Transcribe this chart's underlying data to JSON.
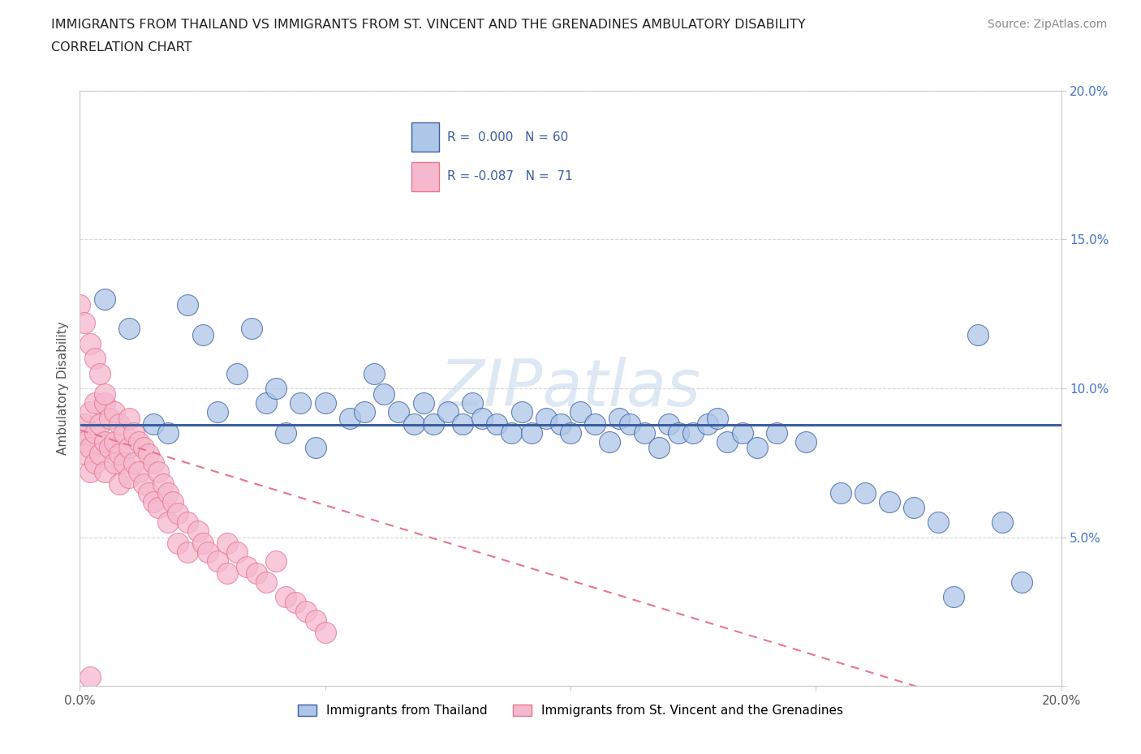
{
  "title_line1": "IMMIGRANTS FROM THAILAND VS IMMIGRANTS FROM ST. VINCENT AND THE GRENADINES AMBULATORY DISABILITY",
  "title_line2": "CORRELATION CHART",
  "source": "Source: ZipAtlas.com",
  "ylabel": "Ambulatory Disability",
  "xlim": [
    0.0,
    0.2
  ],
  "ylim": [
    0.0,
    0.2
  ],
  "x_ticks": [
    0.0,
    0.05,
    0.1,
    0.15,
    0.2
  ],
  "x_tick_labels": [
    "0.0%",
    "",
    "",
    "",
    "20.0%"
  ],
  "y_ticks": [
    0.0,
    0.05,
    0.1,
    0.15,
    0.2
  ],
  "y_tick_labels_left": [
    "",
    "",
    "",
    "",
    ""
  ],
  "y_tick_labels_right": [
    "",
    "5.0%",
    "10.0%",
    "15.0%",
    "20.0%"
  ],
  "color_thailand": "#aec6e8",
  "color_stvincent": "#f5b8ce",
  "color_trend_thailand": "#3a5fa0",
  "color_trend_stvincent": "#e8758a",
  "watermark": "ZIPatlas",
  "legend_entries": [
    "Immigrants from Thailand",
    "Immigrants from St. Vincent and the Grenadines"
  ],
  "thailand_x": [
    0.005,
    0.01,
    0.015,
    0.018,
    0.022,
    0.025,
    0.028,
    0.032,
    0.035,
    0.038,
    0.04,
    0.042,
    0.045,
    0.048,
    0.05,
    0.055,
    0.058,
    0.06,
    0.062,
    0.065,
    0.068,
    0.07,
    0.072,
    0.075,
    0.078,
    0.08,
    0.082,
    0.085,
    0.088,
    0.09,
    0.092,
    0.095,
    0.098,
    0.1,
    0.102,
    0.105,
    0.108,
    0.11,
    0.112,
    0.115,
    0.118,
    0.12,
    0.122,
    0.125,
    0.128,
    0.13,
    0.132,
    0.135,
    0.138,
    0.142,
    0.148,
    0.155,
    0.16,
    0.165,
    0.17,
    0.175,
    0.178,
    0.183,
    0.188,
    0.192
  ],
  "thailand_y": [
    0.13,
    0.12,
    0.088,
    0.085,
    0.128,
    0.118,
    0.092,
    0.105,
    0.12,
    0.095,
    0.1,
    0.085,
    0.095,
    0.08,
    0.095,
    0.09,
    0.092,
    0.105,
    0.098,
    0.092,
    0.088,
    0.095,
    0.088,
    0.092,
    0.088,
    0.095,
    0.09,
    0.088,
    0.085,
    0.092,
    0.085,
    0.09,
    0.088,
    0.085,
    0.092,
    0.088,
    0.082,
    0.09,
    0.088,
    0.085,
    0.08,
    0.088,
    0.085,
    0.085,
    0.088,
    0.09,
    0.082,
    0.085,
    0.08,
    0.085,
    0.082,
    0.065,
    0.065,
    0.062,
    0.06,
    0.055,
    0.03,
    0.118,
    0.055,
    0.035
  ],
  "stvincent_x": [
    0.0,
    0.001,
    0.001,
    0.001,
    0.002,
    0.002,
    0.002,
    0.003,
    0.003,
    0.003,
    0.004,
    0.004,
    0.005,
    0.005,
    0.005,
    0.006,
    0.006,
    0.007,
    0.007,
    0.007,
    0.008,
    0.008,
    0.008,
    0.009,
    0.009,
    0.01,
    0.01,
    0.01,
    0.011,
    0.011,
    0.012,
    0.012,
    0.013,
    0.013,
    0.014,
    0.014,
    0.015,
    0.015,
    0.016,
    0.016,
    0.017,
    0.018,
    0.018,
    0.019,
    0.02,
    0.02,
    0.022,
    0.022,
    0.024,
    0.025,
    0.026,
    0.028,
    0.03,
    0.03,
    0.032,
    0.034,
    0.036,
    0.038,
    0.04,
    0.042,
    0.044,
    0.046,
    0.048,
    0.05,
    0.0,
    0.001,
    0.002,
    0.003,
    0.004,
    0.005,
    0.002
  ],
  "stvincent_y": [
    0.085,
    0.088,
    0.082,
    0.078,
    0.092,
    0.08,
    0.072,
    0.095,
    0.085,
    0.075,
    0.088,
    0.078,
    0.095,
    0.082,
    0.072,
    0.09,
    0.08,
    0.092,
    0.082,
    0.075,
    0.088,
    0.078,
    0.068,
    0.085,
    0.075,
    0.09,
    0.08,
    0.07,
    0.085,
    0.075,
    0.082,
    0.072,
    0.08,
    0.068,
    0.078,
    0.065,
    0.075,
    0.062,
    0.072,
    0.06,
    0.068,
    0.065,
    0.055,
    0.062,
    0.058,
    0.048,
    0.055,
    0.045,
    0.052,
    0.048,
    0.045,
    0.042,
    0.048,
    0.038,
    0.045,
    0.04,
    0.038,
    0.035,
    0.042,
    0.03,
    0.028,
    0.025,
    0.022,
    0.018,
    0.128,
    0.122,
    0.115,
    0.11,
    0.105,
    0.098,
    0.003
  ]
}
